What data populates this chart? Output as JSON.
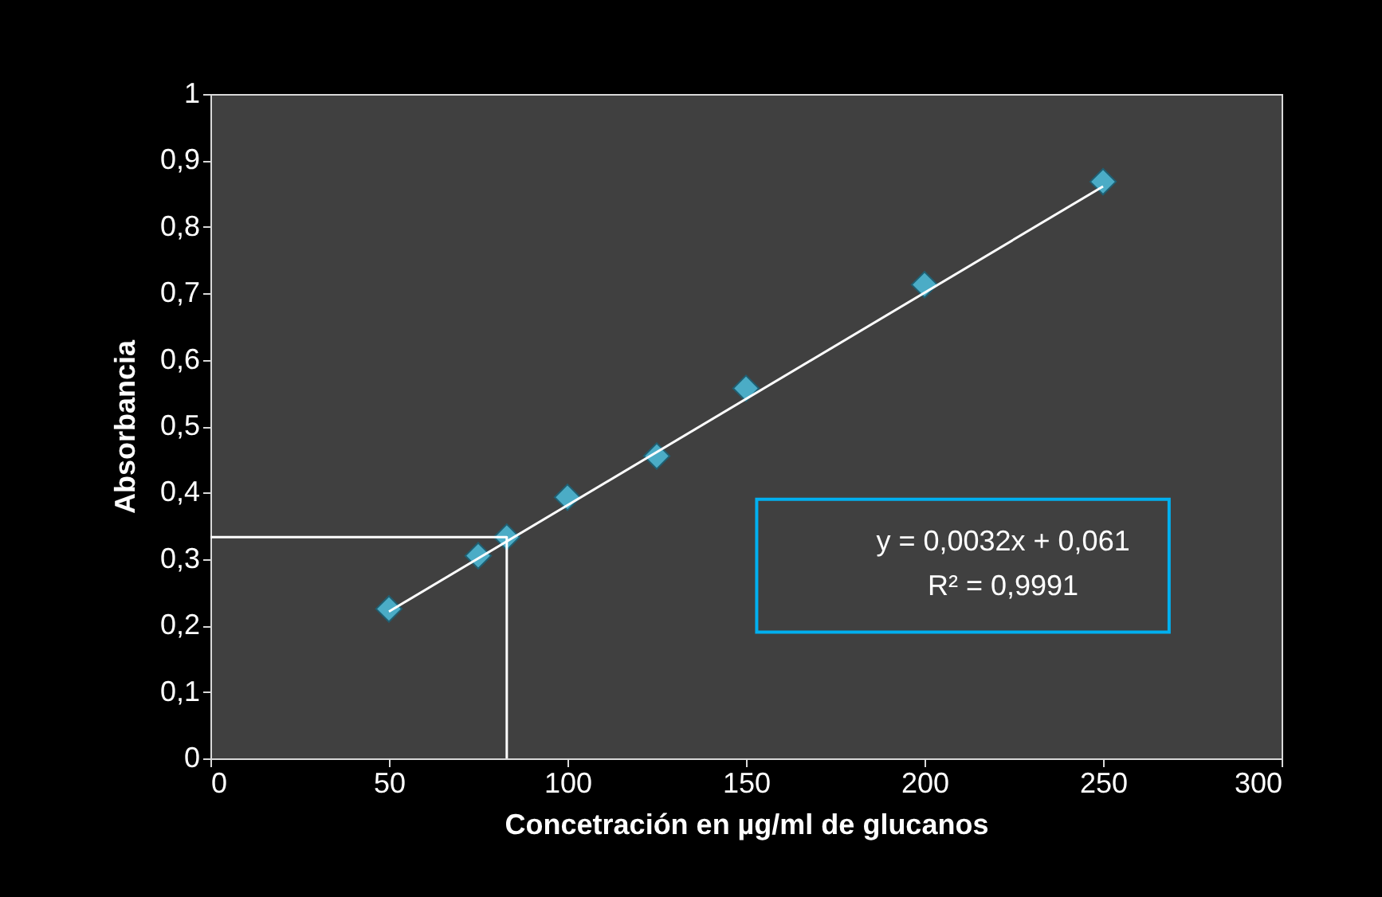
{
  "chart_data": {
    "type": "scatter",
    "xlabel": "Concetración en µg/ml de  glucanos",
    "ylabel": "Absorbancia",
    "series": [
      {
        "color": "#4bacc6",
        "x": [
          50,
          75,
          83,
          100,
          125,
          150,
          200,
          250
        ],
        "values": [
          0.225,
          0.305,
          0.333,
          0.393,
          0.455,
          0.557,
          0.713,
          0.868
        ]
      },
      {
        "type": "line",
        "marker": "none",
        "color": "#ffffff",
        "x": [
          50,
          250
        ],
        "values": [
          0.221,
          0.861
        ]
      },
      {
        "type": "line",
        "marker": "none",
        "color": "#ffffff",
        "x": [
          0,
          83,
          83
        ],
        "values": [
          0.333,
          0.333,
          0
        ]
      }
    ],
    "marker": "diamond",
    "line_style": "solid",
    "grid": false,
    "xlim": [
      0,
      300
    ],
    "xticks": [
      0,
      50,
      100,
      150,
      200,
      250,
      300
    ],
    "ylim": [
      0,
      1
    ],
    "yticks": [
      {
        "value": 0,
        "label": "0"
      },
      {
        "value": 0.1,
        "label": "0,1"
      },
      {
        "value": 0.2,
        "label": "0,2"
      },
      {
        "value": 0.3,
        "label": "0,3"
      },
      {
        "value": 0.4,
        "label": "0,4"
      },
      {
        "value": 0.5,
        "label": "0,5"
      },
      {
        "value": 0.6,
        "label": "0,6"
      },
      {
        "value": 0.7,
        "label": "0,7"
      },
      {
        "value": 0.8,
        "label": "0,8"
      },
      {
        "value": 0.9,
        "label": "0,9"
      },
      {
        "value": 1,
        "label": "1"
      }
    ],
    "annotations": [
      "y = 0,0032x + 0,061",
      "R² = 0,9991"
    ]
  }
}
